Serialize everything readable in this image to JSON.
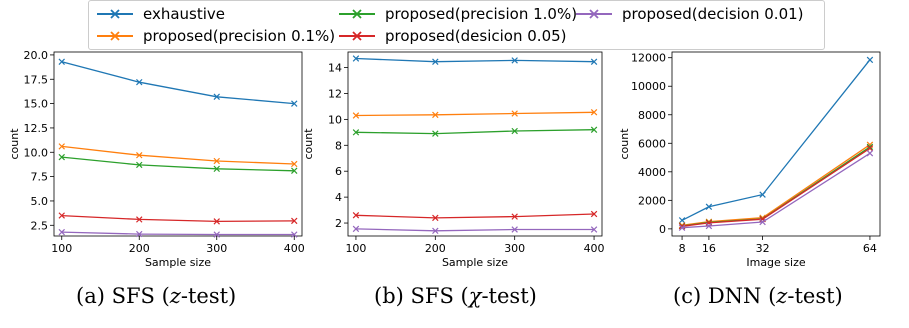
{
  "legend": [
    {
      "label": "exhaustive",
      "color": "#1f77b4"
    },
    {
      "label": "proposed(precision 0.1%)",
      "color": "#ff7f0e"
    },
    {
      "label": "proposed(precision 1.0%)",
      "color": "#2ca02c"
    },
    {
      "label": "proposed(desicion 0.05)",
      "color": "#d62728"
    },
    {
      "label": "proposed(decision 0.01)",
      "color": "#9467bd"
    }
  ],
  "captions": {
    "a": {
      "prefix": "(a) SFS (",
      "var": "z",
      "suffix": "-test)"
    },
    "b": {
      "prefix": "(b) SFS (",
      "var": "χ",
      "suffix": "-test)"
    },
    "c": {
      "prefix": "(c) DNN (",
      "var": "z",
      "suffix": "-test)"
    }
  },
  "chart_data": [
    {
      "type": "line",
      "xlabel": "Sample size",
      "ylabel": "count",
      "x": [
        100,
        200,
        300,
        400
      ],
      "xticks": [
        100,
        200,
        300,
        400
      ],
      "xlim": [
        90,
        410
      ],
      "ylim": [
        1.4,
        20.3
      ],
      "yticks": [
        2.5,
        5.0,
        7.5,
        10.0,
        12.5,
        15.0,
        17.5,
        20.0
      ],
      "ytick_labels": [
        "2.5",
        "5.0",
        "7.5",
        "10.0",
        "12.5",
        "15.0",
        "17.5",
        "20.0"
      ],
      "series": [
        {
          "name": "exhaustive",
          "values": [
            19.3,
            17.2,
            15.7,
            15.0
          ]
        },
        {
          "name": "proposed(precision 0.1%)",
          "values": [
            10.6,
            9.7,
            9.1,
            8.8
          ]
        },
        {
          "name": "proposed(precision 1.0%)",
          "values": [
            9.5,
            8.7,
            8.3,
            8.1
          ]
        },
        {
          "name": "proposed(desicion 0.05)",
          "values": [
            3.5,
            3.1,
            2.9,
            2.95
          ]
        },
        {
          "name": "proposed(decision 0.01)",
          "values": [
            1.8,
            1.6,
            1.55,
            1.55
          ]
        }
      ]
    },
    {
      "type": "line",
      "xlabel": "Sample size",
      "ylabel": "count",
      "x": [
        100,
        200,
        300,
        400
      ],
      "xticks": [
        100,
        200,
        300,
        400
      ],
      "xlim": [
        90,
        410
      ],
      "ylim": [
        1.0,
        15.2
      ],
      "yticks": [
        2,
        4,
        6,
        8,
        10,
        12,
        14
      ],
      "ytick_labels": [
        "2",
        "4",
        "6",
        "8",
        "10",
        "12",
        "14"
      ],
      "series": [
        {
          "name": "exhaustive",
          "values": [
            14.7,
            14.45,
            14.55,
            14.45
          ]
        },
        {
          "name": "proposed(precision 0.1%)",
          "values": [
            10.3,
            10.35,
            10.45,
            10.55
          ]
        },
        {
          "name": "proposed(precision 1.0%)",
          "values": [
            9.0,
            8.9,
            9.1,
            9.2
          ]
        },
        {
          "name": "proposed(desicion 0.05)",
          "values": [
            2.6,
            2.4,
            2.5,
            2.7
          ]
        },
        {
          "name": "proposed(decision 0.01)",
          "values": [
            1.55,
            1.4,
            1.5,
            1.5
          ]
        }
      ]
    },
    {
      "type": "line",
      "xlabel": "Image size",
      "ylabel": "count",
      "x": [
        8,
        16,
        32,
        64
      ],
      "xticks": [
        8,
        16,
        32,
        64
      ],
      "xlim": [
        5,
        67
      ],
      "ylim": [
        -500,
        12400
      ],
      "yticks": [
        0,
        2000,
        4000,
        6000,
        8000,
        10000,
        12000
      ],
      "ytick_labels": [
        "0",
        "2000",
        "4000",
        "6000",
        "8000",
        "10000",
        "12000"
      ],
      "series": [
        {
          "name": "exhaustive",
          "values": [
            600,
            1550,
            2400,
            11850
          ]
        },
        {
          "name": "proposed(precision 0.1%)",
          "values": [
            250,
            500,
            780,
            5900
          ]
        },
        {
          "name": "proposed(precision 1.0%)",
          "values": [
            200,
            450,
            700,
            5750
          ]
        },
        {
          "name": "proposed(desicion 0.05)",
          "values": [
            180,
            420,
            680,
            5650
          ]
        },
        {
          "name": "proposed(decision 0.01)",
          "values": [
            80,
            200,
            480,
            5300
          ]
        }
      ]
    }
  ]
}
